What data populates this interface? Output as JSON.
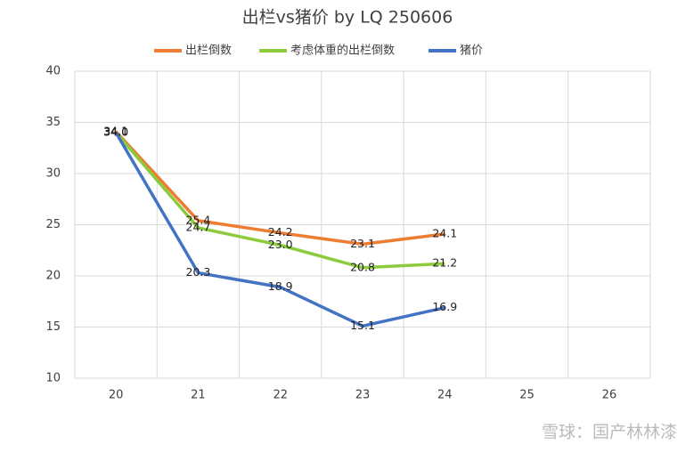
{
  "chart_data": {
    "type": "line",
    "title": "出栏vs猪价 by LQ 250606",
    "categories": [
      "20",
      "21",
      "22",
      "23",
      "24",
      "25",
      "26"
    ],
    "series": [
      {
        "name": "出栏倒数",
        "color": "#ed7d31",
        "values": [
          34.1,
          25.4,
          24.2,
          23.1,
          24.1,
          null,
          null
        ],
        "value_labels": [
          "34.1",
          "25.4",
          "24.2",
          "23.1",
          "24.1",
          null,
          null
        ]
      },
      {
        "name": "考虑体重的出栏倒数",
        "color": "#8ccc3c",
        "values": [
          34.0,
          24.7,
          23.0,
          20.8,
          21.2,
          null,
          null
        ],
        "value_labels": [
          "34.0",
          "24.7",
          "23.0",
          "20.8",
          "21.2",
          null,
          null
        ]
      },
      {
        "name": "猪价",
        "color": "#4472c4",
        "values": [
          34.0,
          20.3,
          18.9,
          15.1,
          16.9,
          null,
          null
        ],
        "value_labels": [
          "34.0",
          "20.3",
          "18.9",
          "15.1",
          "16.9",
          null,
          null
        ]
      }
    ],
    "ylim": [
      10,
      40
    ],
    "yticks": [
      10,
      15,
      20,
      25,
      30,
      35,
      40
    ],
    "grid": true,
    "legend": "top",
    "watermark": "雪球：国产林林漆"
  }
}
